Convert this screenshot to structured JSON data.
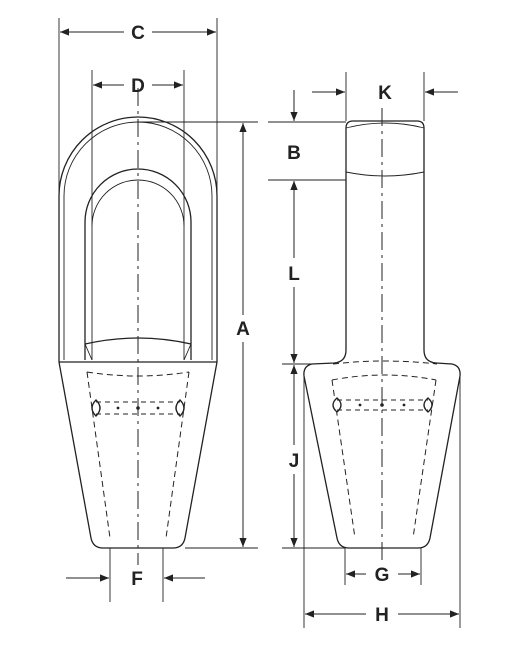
{
  "diagram": {
    "labels": {
      "A": "A",
      "B": "B",
      "C": "C",
      "D": "D",
      "F": "F",
      "G": "G",
      "H": "H",
      "J": "J",
      "K": "K",
      "L": "L"
    },
    "colors": {
      "line": "#222222",
      "background": "#ffffff"
    }
  }
}
